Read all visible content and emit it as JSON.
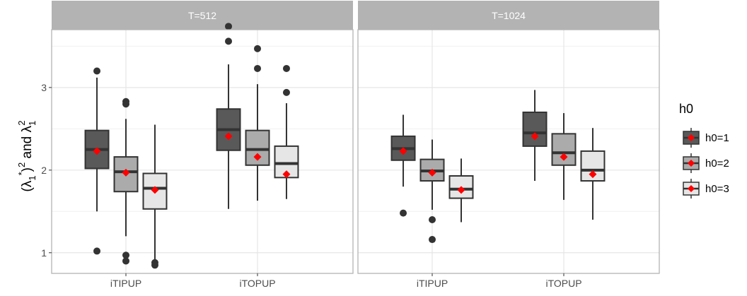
{
  "chart_data": {
    "type": "boxplot",
    "ylabel": "(λ₁*)² and λ₁²",
    "ylim": [
      0.75,
      3.7
    ],
    "yticks": [
      1,
      2,
      3
    ],
    "grid": true,
    "categories": [
      "iTIPUP",
      "iTOPUP"
    ],
    "legend": {
      "title": "h0",
      "position": "right",
      "entries": [
        {
          "label": "h0=1",
          "color": "#595959"
        },
        {
          "label": "h0=2",
          "color": "#ababab"
        },
        {
          "label": "h0=3",
          "color": "#e6e6e6"
        }
      ]
    },
    "mean_marker_color": "#ff0000",
    "panels": [
      {
        "title": "T=512",
        "boxes": [
          {
            "category": "iTIPUP",
            "group": "h0=1",
            "q1": 2.02,
            "median": 2.25,
            "q3": 2.48,
            "whisker_low": 1.5,
            "whisker_high": 3.12,
            "mean": 2.23,
            "outliers": [
              3.2,
              1.02
            ]
          },
          {
            "category": "iTIPUP",
            "group": "h0=2",
            "q1": 1.74,
            "median": 1.98,
            "q3": 2.16,
            "whisker_low": 1.2,
            "whisker_high": 2.62,
            "mean": 1.97,
            "outliers": [
              2.83,
              2.8,
              0.97,
              0.9
            ]
          },
          {
            "category": "iTIPUP",
            "group": "h0=3",
            "q1": 1.53,
            "median": 1.78,
            "q3": 1.96,
            "whisker_low": 0.92,
            "whisker_high": 2.55,
            "mean": 1.76,
            "outliers": [
              0.88,
              0.85
            ]
          },
          {
            "category": "iTOPUP",
            "group": "h0=1",
            "q1": 2.24,
            "median": 2.49,
            "q3": 2.74,
            "whisker_low": 1.53,
            "whisker_high": 3.28,
            "mean": 2.41,
            "outliers": [
              3.74,
              3.56
            ]
          },
          {
            "category": "iTOPUP",
            "group": "h0=2",
            "q1": 2.06,
            "median": 2.25,
            "q3": 2.48,
            "whisker_low": 1.63,
            "whisker_high": 3.04,
            "mean": 2.16,
            "outliers": [
              3.47,
              3.23
            ]
          },
          {
            "category": "iTOPUP",
            "group": "h0=3",
            "q1": 1.91,
            "median": 2.08,
            "q3": 2.29,
            "whisker_low": 1.65,
            "whisker_high": 2.81,
            "mean": 1.95,
            "outliers": [
              3.23,
              2.94
            ]
          }
        ]
      },
      {
        "title": "T=1024",
        "boxes": [
          {
            "category": "iTIPUP",
            "group": "h0=1",
            "q1": 2.12,
            "median": 2.26,
            "q3": 2.41,
            "whisker_low": 1.8,
            "whisker_high": 2.67,
            "mean": 2.23,
            "outliers": [
              1.48
            ]
          },
          {
            "category": "iTIPUP",
            "group": "h0=2",
            "q1": 1.87,
            "median": 1.99,
            "q3": 2.13,
            "whisker_low": 1.52,
            "whisker_high": 2.37,
            "mean": 1.97,
            "outliers": [
              1.4,
              1.16
            ]
          },
          {
            "category": "iTIPUP",
            "group": "h0=3",
            "q1": 1.66,
            "median": 1.77,
            "q3": 1.93,
            "whisker_low": 1.37,
            "whisker_high": 2.14,
            "mean": 1.76,
            "outliers": []
          },
          {
            "category": "iTOPUP",
            "group": "h0=1",
            "q1": 2.29,
            "median": 2.45,
            "q3": 2.7,
            "whisker_low": 1.87,
            "whisker_high": 2.97,
            "mean": 2.41,
            "outliers": []
          },
          {
            "category": "iTOPUP",
            "group": "h0=2",
            "q1": 2.06,
            "median": 2.21,
            "q3": 2.44,
            "whisker_low": 1.64,
            "whisker_high": 2.69,
            "mean": 2.16,
            "outliers": []
          },
          {
            "category": "iTOPUP",
            "group": "h0=3",
            "q1": 1.87,
            "median": 2.0,
            "q3": 2.23,
            "whisker_low": 1.4,
            "whisker_high": 2.51,
            "mean": 1.95,
            "outliers": []
          }
        ]
      }
    ]
  }
}
